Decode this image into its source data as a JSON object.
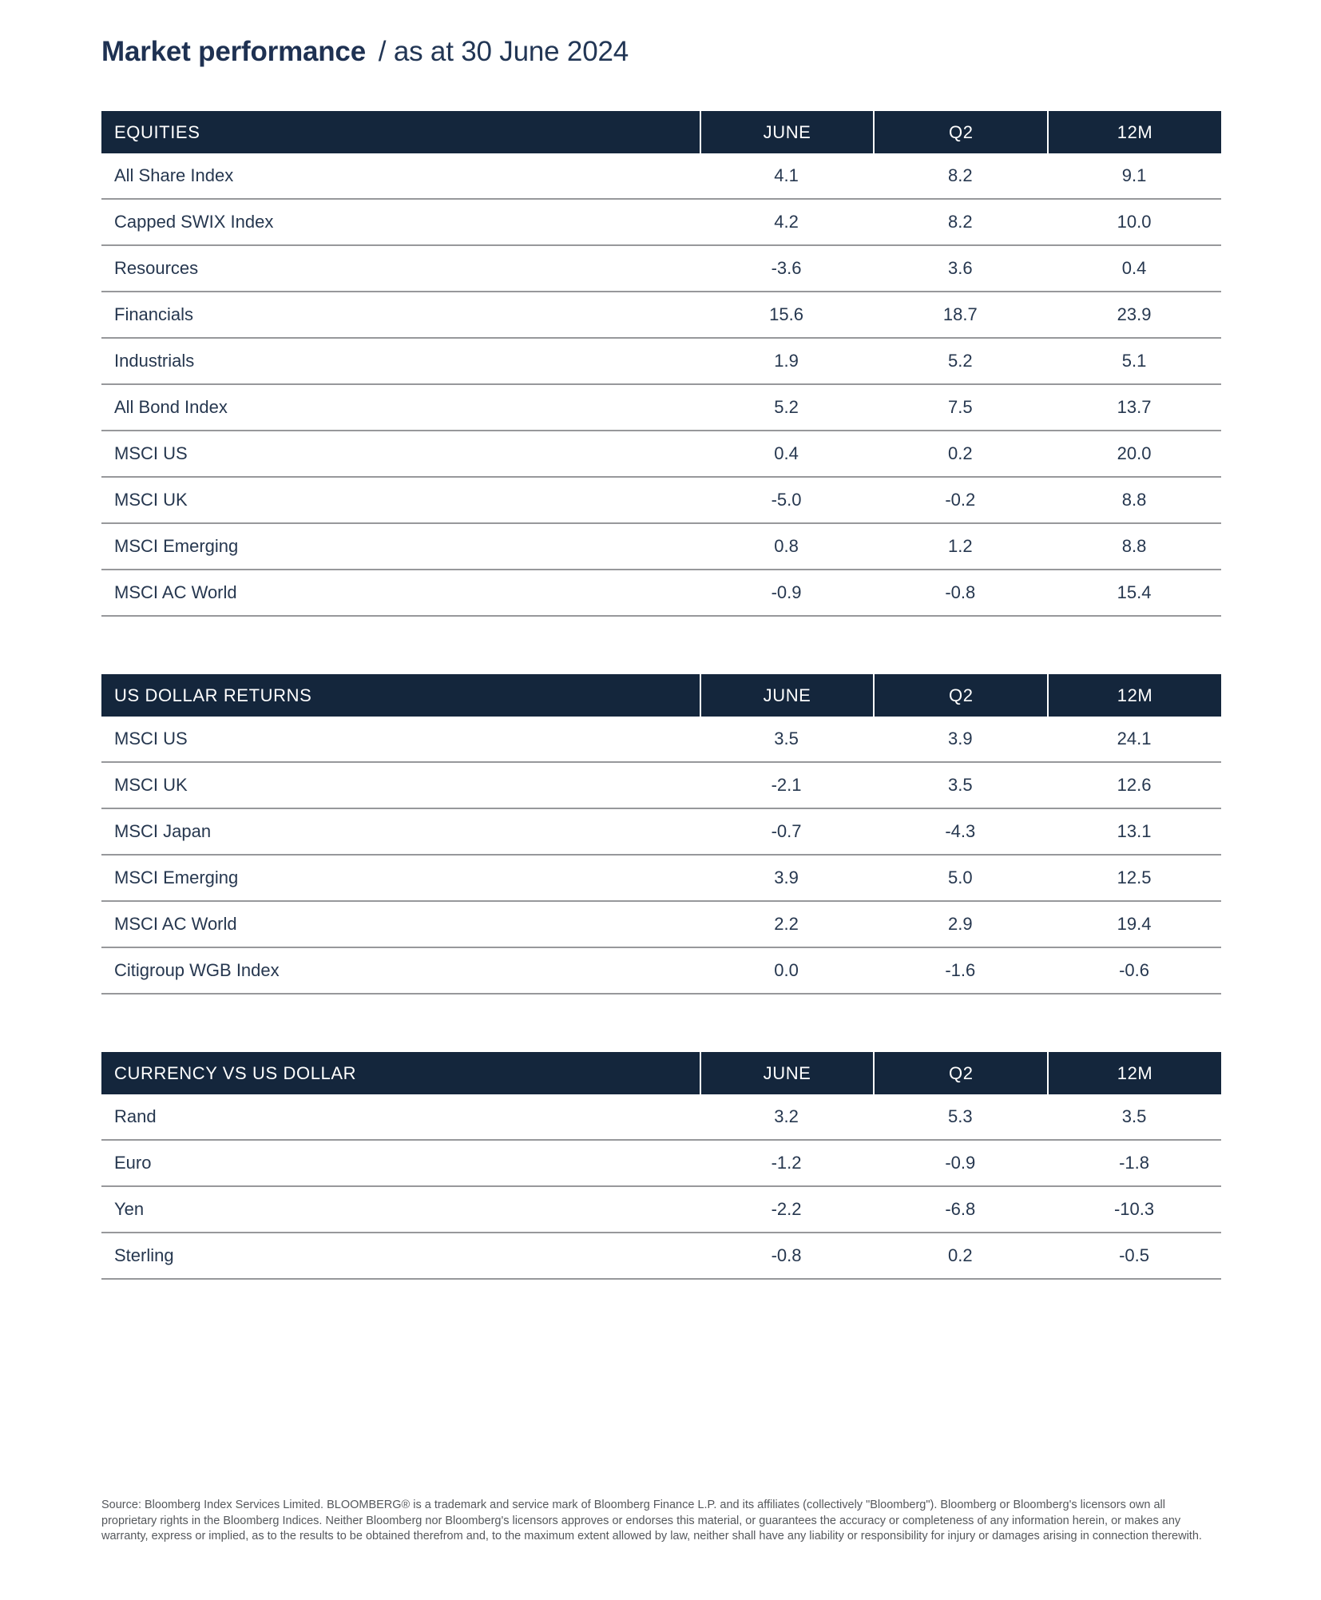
{
  "title": {
    "main": "Market performance",
    "suffix": "/ as at 30 June 2024"
  },
  "columns": [
    "JUNE",
    "Q2",
    "12M"
  ],
  "tables": [
    {
      "title": "EQUITIES",
      "rows": [
        {
          "label": "All Share Index",
          "values": [
            "4.1",
            "8.2",
            "9.1"
          ]
        },
        {
          "label": "Capped SWIX Index",
          "values": [
            "4.2",
            "8.2",
            "10.0"
          ]
        },
        {
          "label": "Resources",
          "values": [
            "-3.6",
            "3.6",
            "0.4"
          ]
        },
        {
          "label": "Financials",
          "values": [
            "15.6",
            "18.7",
            "23.9"
          ]
        },
        {
          "label": "Industrials",
          "values": [
            "1.9",
            "5.2",
            "5.1"
          ]
        },
        {
          "label": "All Bond Index",
          "values": [
            "5.2",
            "7.5",
            "13.7"
          ]
        },
        {
          "label": "MSCI US",
          "values": [
            "0.4",
            "0.2",
            "20.0"
          ]
        },
        {
          "label": "MSCI UK",
          "values": [
            "-5.0",
            "-0.2",
            "8.8"
          ]
        },
        {
          "label": "MSCI Emerging",
          "values": [
            "0.8",
            "1.2",
            "8.8"
          ]
        },
        {
          "label": "MSCI AC World",
          "values": [
            "-0.9",
            "-0.8",
            "15.4"
          ]
        }
      ]
    },
    {
      "title": "US DOLLAR RETURNS",
      "rows": [
        {
          "label": "MSCI US",
          "values": [
            "3.5",
            "3.9",
            "24.1"
          ]
        },
        {
          "label": "MSCI UK",
          "values": [
            "-2.1",
            "3.5",
            "12.6"
          ]
        },
        {
          "label": "MSCI Japan",
          "values": [
            "-0.7",
            "-4.3",
            "13.1"
          ]
        },
        {
          "label": "MSCI Emerging",
          "values": [
            "3.9",
            "5.0",
            "12.5"
          ]
        },
        {
          "label": "MSCI AC World",
          "values": [
            "2.2",
            "2.9",
            "19.4"
          ]
        },
        {
          "label": "Citigroup WGB Index",
          "values": [
            "0.0",
            "-1.6",
            "-0.6"
          ]
        }
      ]
    },
    {
      "title": "CURRENCY VS US DOLLAR",
      "rows": [
        {
          "label": "Rand",
          "values": [
            "3.2",
            "5.3",
            "3.5"
          ]
        },
        {
          "label": "Euro",
          "values": [
            "-1.2",
            "-0.9",
            "-1.8"
          ]
        },
        {
          "label": "Yen",
          "values": [
            "-2.2",
            "-6.8",
            "-10.3"
          ]
        },
        {
          "label": "Sterling",
          "values": [
            "-0.8",
            "0.2",
            "-0.5"
          ]
        }
      ]
    }
  ],
  "footer": "Source: Bloomberg Index Services Limited. BLOOMBERG® is a trademark and service mark of Bloomberg Finance L.P. and its affiliates (collectively \"Bloomberg\"). Bloomberg or Bloomberg's licensors own all proprietary rights in the Bloomberg Indices. Neither Bloomberg nor Bloomberg's licensors approves or endorses this material, or guarantees the accuracy or completeness of any information herein, or makes any warranty, express or implied, as to the results to be obtained therefrom and, to the maximum extent allowed by law, neither shall have any liability or responsibility for injury or damages arising in connection therewith.",
  "colors": {
    "header_bg": "#14263C",
    "title_text": "#1E3152",
    "body_text": "#26374F",
    "separator": "#97989B",
    "footer_text": "#55585C"
  }
}
